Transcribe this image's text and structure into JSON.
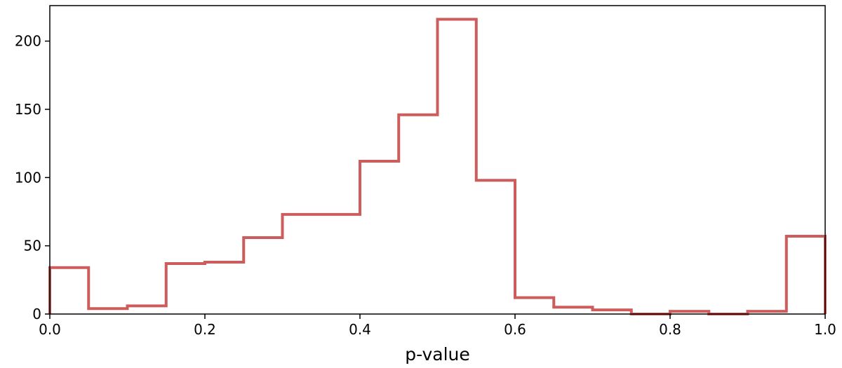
{
  "chart_data": {
    "type": "histogram",
    "title": "",
    "xlabel": "p-value",
    "ylabel": "",
    "xlim": [
      0.0,
      1.0
    ],
    "ylim": [
      0,
      226
    ],
    "grid": false,
    "legend": "none",
    "line_color": "#cd5c5c",
    "bin_edges": [
      0.0,
      0.05,
      0.1,
      0.15,
      0.2,
      0.25,
      0.3,
      0.35,
      0.4,
      0.45,
      0.5,
      0.55,
      0.6,
      0.65,
      0.7,
      0.75,
      0.8,
      0.85,
      0.9,
      0.95,
      1.0
    ],
    "counts": [
      34,
      4,
      6,
      37,
      38,
      56,
      73,
      73,
      112,
      146,
      216,
      98,
      12,
      5,
      3,
      0,
      2,
      0,
      2,
      57
    ],
    "x_ticks": [
      0.0,
      0.2,
      0.4,
      0.6,
      0.8,
      1.0
    ],
    "x_tick_labels": [
      "0.0",
      "0.2",
      "0.4",
      "0.6",
      "0.8",
      "1.0"
    ],
    "y_ticks": [
      0,
      50,
      100,
      150,
      200
    ],
    "y_tick_labels": [
      "0",
      "50",
      "100",
      "150",
      "200"
    ]
  }
}
